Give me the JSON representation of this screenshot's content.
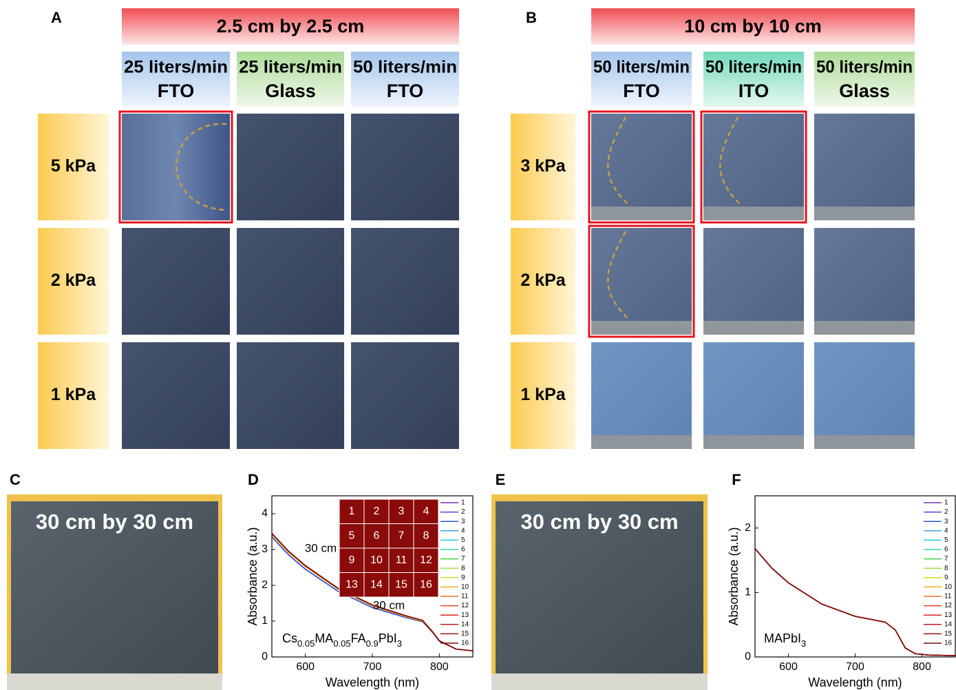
{
  "panels": [
    {
      "label": "A",
      "title": "2.5 cm by 2.5 cm",
      "columns": [
        [
          "25 liters/min",
          "FTO"
        ],
        [
          "25 liters/min",
          "Glass"
        ],
        [
          "50 liters/min",
          "FTO"
        ]
      ],
      "rows": [
        "5 kPa",
        "2 kPa",
        "1 kPa"
      ]
    },
    {
      "label": "B",
      "title": "10 cm by 10 cm",
      "columns": [
        [
          "50 liters/min",
          "FTO"
        ],
        [
          "50 liters/min",
          "ITO"
        ],
        [
          "50 liters/min",
          "Glass"
        ]
      ],
      "rows": [
        "3 kPa",
        "2 kPa",
        "1 kPa"
      ]
    }
  ],
  "photos": [
    {
      "label": "C",
      "caption": "30 cm by 30 cm"
    },
    {
      "label": "E",
      "caption": "30 cm by 30 cm"
    }
  ],
  "chart_data": [
    {
      "type": "line",
      "panel_label": "D",
      "xlabel": "Wavelength (nm)",
      "ylabel": "Absorbance (a.u.)",
      "xlim": [
        550,
        850
      ],
      "ylim": [
        0,
        4.5
      ],
      "xticks": [
        600,
        700,
        800
      ],
      "yticks": [
        0,
        1,
        2,
        3,
        4
      ],
      "annotation_parts": [
        "Cs",
        "0.05",
        "MA",
        "0.05",
        "FA",
        "0.9",
        "PbI",
        "3"
      ],
      "inset": {
        "cells": [
          "1",
          "2",
          "3",
          "4",
          "5",
          "6",
          "7",
          "8",
          "9",
          "10",
          "11",
          "12",
          "13",
          "14",
          "15",
          "16"
        ],
        "height_label": "30 cm",
        "width_label": "30 cm"
      },
      "x": [
        550,
        575,
        600,
        650,
        700,
        750,
        775,
        790,
        800,
        825,
        850
      ],
      "series": [
        {
          "name": "1",
          "color": "#7b2fbe",
          "values": [
            3.35,
            2.85,
            2.45,
            1.82,
            1.38,
            1.1,
            0.98,
            0.68,
            0.44,
            0.22,
            0.17
          ]
        },
        {
          "name": "2",
          "color": "#5a3de0",
          "values": [
            3.35,
            2.85,
            2.45,
            1.82,
            1.38,
            1.1,
            0.98,
            0.68,
            0.44,
            0.22,
            0.17
          ]
        },
        {
          "name": "3",
          "color": "#2a55d8",
          "values": [
            3.35,
            2.85,
            2.45,
            1.82,
            1.38,
            1.1,
            0.98,
            0.68,
            0.44,
            0.22,
            0.17
          ]
        },
        {
          "name": "4",
          "color": "#3aa0e8",
          "values": [
            3.42,
            2.92,
            2.52,
            1.88,
            1.43,
            1.13,
            1.0,
            0.69,
            0.45,
            0.22,
            0.17
          ]
        },
        {
          "name": "5",
          "color": "#20c8e0",
          "values": [
            3.42,
            2.92,
            2.52,
            1.88,
            1.43,
            1.13,
            1.0,
            0.69,
            0.45,
            0.22,
            0.17
          ]
        },
        {
          "name": "6",
          "color": "#30d8b0",
          "values": [
            3.42,
            2.92,
            2.52,
            1.88,
            1.43,
            1.13,
            1.0,
            0.69,
            0.45,
            0.22,
            0.17
          ]
        },
        {
          "name": "7",
          "color": "#40d840",
          "values": [
            3.42,
            2.92,
            2.52,
            1.88,
            1.43,
            1.13,
            1.0,
            0.69,
            0.45,
            0.22,
            0.17
          ]
        },
        {
          "name": "8",
          "color": "#a0e040",
          "values": [
            3.42,
            2.92,
            2.52,
            1.88,
            1.43,
            1.13,
            1.0,
            0.69,
            0.45,
            0.22,
            0.17
          ]
        },
        {
          "name": "9",
          "color": "#d8d820",
          "values": [
            3.42,
            2.92,
            2.52,
            1.88,
            1.43,
            1.13,
            1.0,
            0.69,
            0.45,
            0.22,
            0.17
          ]
        },
        {
          "name": "10",
          "color": "#f0b020",
          "values": [
            3.42,
            2.92,
            2.52,
            1.88,
            1.43,
            1.13,
            1.0,
            0.69,
            0.45,
            0.22,
            0.17
          ]
        },
        {
          "name": "11",
          "color": "#f07020",
          "values": [
            3.45,
            2.95,
            2.55,
            1.9,
            1.45,
            1.15,
            1.02,
            0.7,
            0.45,
            0.22,
            0.17
          ]
        },
        {
          "name": "12",
          "color": "#e84020",
          "values": [
            3.45,
            2.95,
            2.55,
            1.9,
            1.45,
            1.15,
            1.02,
            0.7,
            0.45,
            0.22,
            0.17
          ]
        },
        {
          "name": "13",
          "color": "#e02020",
          "values": [
            3.45,
            2.95,
            2.55,
            1.9,
            1.45,
            1.15,
            1.02,
            0.7,
            0.45,
            0.22,
            0.17
          ]
        },
        {
          "name": "14",
          "color": "#c81818",
          "values": [
            3.45,
            2.95,
            2.55,
            1.9,
            1.45,
            1.15,
            1.02,
            0.7,
            0.45,
            0.22,
            0.17
          ]
        },
        {
          "name": "15",
          "color": "#a01010",
          "values": [
            3.45,
            2.95,
            2.55,
            1.9,
            1.45,
            1.15,
            1.02,
            0.7,
            0.45,
            0.22,
            0.17
          ]
        },
        {
          "name": "16",
          "color": "#7a0a0a",
          "values": [
            3.45,
            2.95,
            2.55,
            1.9,
            1.45,
            1.15,
            1.02,
            0.7,
            0.45,
            0.22,
            0.17
          ]
        }
      ]
    },
    {
      "type": "line",
      "panel_label": "F",
      "xlabel": "Wavelength (nm)",
      "ylabel": "Absorbance (a.u.)",
      "xlim": [
        550,
        850
      ],
      "ylim": [
        0,
        2.5
      ],
      "xticks": [
        600,
        700,
        800
      ],
      "yticks": [
        0,
        1,
        2
      ],
      "annotation_parts": [
        "MAPbI",
        "3"
      ],
      "x": [
        550,
        575,
        600,
        650,
        700,
        745,
        760,
        775,
        790,
        810,
        850
      ],
      "series": [
        {
          "name": "1",
          "color": "#7b2fbe",
          "values": [
            1.68,
            1.38,
            1.15,
            0.82,
            0.63,
            0.54,
            0.42,
            0.14,
            0.05,
            0.03,
            0.02
          ]
        },
        {
          "name": "2",
          "color": "#5a3de0",
          "values": [
            1.68,
            1.38,
            1.15,
            0.82,
            0.63,
            0.54,
            0.42,
            0.14,
            0.05,
            0.03,
            0.02
          ]
        },
        {
          "name": "3",
          "color": "#2a55d8",
          "values": [
            1.68,
            1.38,
            1.15,
            0.82,
            0.63,
            0.54,
            0.42,
            0.14,
            0.05,
            0.03,
            0.02
          ]
        },
        {
          "name": "4",
          "color": "#3aa0e8",
          "values": [
            1.68,
            1.38,
            1.15,
            0.82,
            0.63,
            0.54,
            0.42,
            0.14,
            0.05,
            0.03,
            0.02
          ]
        },
        {
          "name": "5",
          "color": "#20c8e0",
          "values": [
            1.68,
            1.38,
            1.15,
            0.82,
            0.63,
            0.54,
            0.42,
            0.14,
            0.05,
            0.03,
            0.02
          ]
        },
        {
          "name": "6",
          "color": "#30d8b0",
          "values": [
            1.68,
            1.38,
            1.15,
            0.82,
            0.63,
            0.54,
            0.42,
            0.14,
            0.05,
            0.03,
            0.02
          ]
        },
        {
          "name": "7",
          "color": "#40d840",
          "values": [
            1.68,
            1.38,
            1.15,
            0.82,
            0.63,
            0.54,
            0.42,
            0.14,
            0.05,
            0.03,
            0.02
          ]
        },
        {
          "name": "8",
          "color": "#a0e040",
          "values": [
            1.68,
            1.38,
            1.15,
            0.82,
            0.63,
            0.54,
            0.42,
            0.14,
            0.05,
            0.03,
            0.02
          ]
        },
        {
          "name": "9",
          "color": "#d8d820",
          "values": [
            1.68,
            1.38,
            1.15,
            0.82,
            0.63,
            0.54,
            0.42,
            0.14,
            0.05,
            0.03,
            0.02
          ]
        },
        {
          "name": "10",
          "color": "#f0b020",
          "values": [
            1.68,
            1.38,
            1.15,
            0.82,
            0.63,
            0.54,
            0.42,
            0.14,
            0.05,
            0.03,
            0.02
          ]
        },
        {
          "name": "11",
          "color": "#f07020",
          "values": [
            1.68,
            1.38,
            1.15,
            0.82,
            0.63,
            0.54,
            0.42,
            0.14,
            0.05,
            0.03,
            0.02
          ]
        },
        {
          "name": "12",
          "color": "#e84020",
          "values": [
            1.68,
            1.38,
            1.15,
            0.82,
            0.63,
            0.54,
            0.42,
            0.14,
            0.05,
            0.03,
            0.02
          ]
        },
        {
          "name": "13",
          "color": "#e02020",
          "values": [
            1.68,
            1.38,
            1.15,
            0.82,
            0.63,
            0.54,
            0.42,
            0.14,
            0.05,
            0.03,
            0.02
          ]
        },
        {
          "name": "14",
          "color": "#c81818",
          "values": [
            1.68,
            1.38,
            1.15,
            0.82,
            0.63,
            0.54,
            0.42,
            0.14,
            0.05,
            0.03,
            0.02
          ]
        },
        {
          "name": "15",
          "color": "#a01010",
          "values": [
            1.68,
            1.38,
            1.15,
            0.82,
            0.63,
            0.54,
            0.42,
            0.14,
            0.05,
            0.03,
            0.02
          ]
        },
        {
          "name": "16",
          "color": "#7a0a0a",
          "values": [
            1.68,
            1.38,
            1.15,
            0.82,
            0.63,
            0.54,
            0.42,
            0.14,
            0.05,
            0.03,
            0.02
          ]
        }
      ]
    }
  ]
}
